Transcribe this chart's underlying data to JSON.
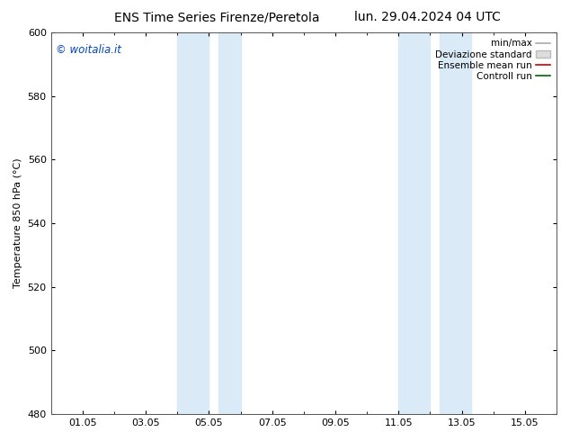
{
  "title_left": "ENS Time Series Firenze/Peretola",
  "title_right": "lun. 29.04.2024 04 UTC",
  "ylabel": "Temperature 850 hPa (°C)",
  "ylim": [
    480,
    600
  ],
  "yticks": [
    480,
    500,
    520,
    540,
    560,
    580,
    600
  ],
  "xlim_num": [
    0,
    16
  ],
  "xtick_labels": [
    "01.05",
    "03.05",
    "05.05",
    "07.05",
    "09.05",
    "11.05",
    "13.05",
    "15.05"
  ],
  "xtick_positions": [
    1,
    3,
    5,
    7,
    9,
    11,
    13,
    15
  ],
  "shaded_bands": [
    {
      "x_start": 4.0,
      "x_end": 5.0
    },
    {
      "x_start": 5.3,
      "x_end": 6.0
    },
    {
      "x_start": 11.0,
      "x_end": 12.0
    },
    {
      "x_start": 12.3,
      "x_end": 13.3
    }
  ],
  "shaded_color": "#daeaf7",
  "watermark_text": "© woitalia.it",
  "watermark_color": "#0044bb",
  "bg_color": "#ffffff",
  "plot_bg_color": "#ffffff",
  "grid_color": "#cccccc",
  "title_fontsize": 10,
  "axis_fontsize": 8,
  "tick_fontsize": 8,
  "legend_fontsize": 7.5
}
